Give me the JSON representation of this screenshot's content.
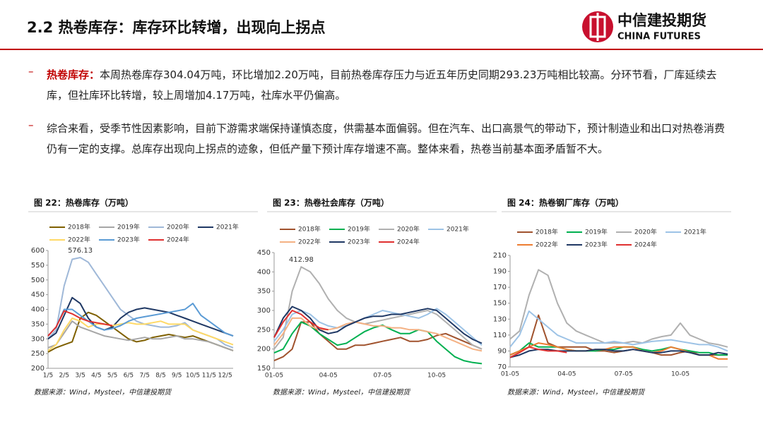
{
  "header": {
    "title": "2.2 热卷库存：库存环比转增，出现向上拐点",
    "logo_cn": "中信建投期货",
    "logo_en": "CHINA FUTURES"
  },
  "bullets": [
    {
      "label": "热卷库存：",
      "text": "本周热卷库存304.04万吨，环比增加2.20万吨，目前热卷库存压力与近五年历史同期293.23万吨相比较高。分环节看，厂库延续去库，但社库环比转增，较上周增加4.17万吨，社库水平仍偏高。"
    },
    {
      "text": "综合来看，受季节性因素影响，目前下游需求端保持谨慎态度，供需基本面偏弱。但在汽车、出口高景气的带动下，预计制造业和出口对热卷消费仍有一定的支撑。总库存出现向上拐点的迹象，但低产量下预计库存增速不高。整体来看，热卷当前基本面矛盾暂不大。"
    }
  ],
  "chart_data": [
    {
      "type": "line",
      "title": "图 22：热卷库存（万吨）",
      "source": "数据来源：Wind，Mysteel，中信建投期货",
      "max_label": true,
      "categories": [
        "1/5",
        null,
        "2/5",
        null,
        "3/5",
        null,
        "4/5",
        null,
        "5/5",
        null,
        "6/5",
        null,
        "7/5",
        null,
        "8/5",
        null,
        "9/5",
        null,
        "10/5",
        null,
        "11/5",
        null,
        "12/5",
        null
      ],
      "ylim": [
        200,
        600
      ],
      "yticks": [
        200,
        250,
        300,
        350,
        400,
        450,
        500,
        550,
        600
      ],
      "series": [
        {
          "name": "2018年",
          "color": "#7f6000",
          "values": [
            255,
            270,
            280,
            290,
            370,
            390,
            380,
            360,
            340,
            320,
            300,
            290,
            295,
            305,
            310,
            315,
            310,
            305,
            310,
            300,
            290,
            280,
            270,
            260
          ]
        },
        {
          "name": "2019年",
          "color": "#a6a6a6",
          "values": [
            270,
            280,
            320,
            360,
            340,
            330,
            320,
            310,
            305,
            300,
            295,
            300,
            305,
            300,
            300,
            305,
            310,
            300,
            300,
            295,
            290,
            280,
            270,
            260
          ]
        },
        {
          "name": "2020年",
          "color": "#9fb8d8",
          "values": [
            300,
            330,
            480,
            570,
            576.13,
            560,
            520,
            480,
            440,
            400,
            380,
            360,
            350,
            345,
            340,
            340,
            345,
            355,
            330,
            320,
            310,
            300,
            280,
            270
          ]
        },
        {
          "name": "2021年",
          "color": "#1f3864",
          "values": [
            300,
            320,
            380,
            440,
            420,
            370,
            340,
            330,
            340,
            370,
            390,
            400,
            405,
            400,
            395,
            390,
            380,
            370,
            360,
            350,
            340,
            330,
            320,
            310
          ]
        },
        {
          "name": "2022年",
          "color": "#ffd966",
          "values": [
            260,
            280,
            330,
            370,
            360,
            340,
            350,
            350,
            345,
            350,
            355,
            350,
            350,
            355,
            360,
            350,
            350,
            350,
            330,
            320,
            310,
            300,
            290,
            280
          ]
        },
        {
          "name": "2023年",
          "color": "#5b9bd5",
          "values": [
            310,
            340,
            400,
            400,
            380,
            360,
            340,
            330,
            335,
            345,
            360,
            370,
            375,
            380,
            385,
            390,
            395,
            400,
            420,
            380,
            360,
            340,
            320,
            310
          ]
        },
        {
          "name": "2024年",
          "color": "#e03030",
          "values": [
            310,
            340,
            395,
            385,
            370,
            360,
            355,
            350,
            345,
            null,
            null,
            null,
            null,
            null,
            null,
            null,
            null,
            null,
            null,
            null,
            null,
            null,
            null,
            null
          ]
        }
      ]
    },
    {
      "type": "line",
      "title": "图 23：热卷社会库存（万吨）",
      "source": "数据来源：Wind，Mysteel，中信建投期货",
      "max_label": true,
      "categories": [
        "01-05",
        null,
        null,
        null,
        null,
        null,
        "04-05",
        null,
        null,
        null,
        null,
        null,
        "07-05",
        null,
        null,
        null,
        null,
        null,
        "10-05",
        null,
        null,
        null,
        null,
        null
      ],
      "ylim": [
        150,
        450
      ],
      "yticks": [
        150,
        200,
        250,
        300,
        350,
        400,
        450
      ],
      "series": [
        {
          "name": "2018年",
          "color": "#a0522d",
          "values": [
            170,
            180,
            200,
            270,
            270,
            240,
            220,
            200,
            200,
            210,
            210,
            215,
            220,
            225,
            230,
            220,
            220,
            225,
            235,
            240,
            230,
            220,
            210,
            200
          ]
        },
        {
          "name": "2019年",
          "color": "#00b050",
          "values": [
            190,
            200,
            240,
            270,
            260,
            240,
            225,
            210,
            215,
            230,
            245,
            255,
            262,
            250,
            240,
            240,
            250,
            245,
            220,
            200,
            180,
            170,
            165,
            162
          ]
        },
        {
          "name": "2020年",
          "color": "#b0b0b0",
          "values": [
            200,
            230,
            350,
            412.98,
            400,
            370,
            330,
            300,
            280,
            270,
            265,
            270,
            275,
            280,
            285,
            290,
            295,
            300,
            290,
            270,
            250,
            230,
            210,
            200
          ]
        },
        {
          "name": "2021年",
          "color": "#9dc3e6",
          "values": [
            220,
            250,
            290,
            300,
            290,
            270,
            260,
            255,
            260,
            270,
            280,
            290,
            300,
            295,
            290,
            285,
            280,
            290,
            305,
            290,
            270,
            250,
            230,
            210
          ]
        },
        {
          "name": "2022年",
          "color": "#f4b183",
          "values": [
            210,
            240,
            280,
            280,
            260,
            250,
            250,
            255,
            265,
            270,
            265,
            260,
            260,
            255,
            255,
            250,
            250,
            245,
            240,
            230,
            220,
            210,
            200,
            195
          ]
        },
        {
          "name": "2023年",
          "color": "#1f3864",
          "values": [
            230,
            280,
            310,
            300,
            280,
            250,
            240,
            245,
            260,
            270,
            280,
            285,
            285,
            290,
            290,
            295,
            300,
            305,
            300,
            280,
            260,
            240,
            225,
            215
          ]
        },
        {
          "name": "2024年",
          "color": "#e03030",
          "values": [
            230,
            270,
            300,
            290,
            270,
            255,
            250,
            null,
            null,
            null,
            null,
            null,
            null,
            null,
            null,
            null,
            null,
            null,
            null,
            null,
            null,
            null,
            null,
            null
          ]
        }
      ]
    },
    {
      "type": "line",
      "title": "图 24：热卷钢厂库存（万吨）",
      "source": "数据来源：Wind，Mysteel，中信建投期货",
      "max_label": false,
      "categories": [
        "01-05",
        null,
        null,
        null,
        null,
        null,
        "04-05",
        null,
        null,
        null,
        null,
        null,
        "07-05",
        null,
        null,
        null,
        null,
        null,
        "10-05",
        null,
        null,
        null,
        null,
        null
      ],
      "ylim": [
        70,
        210
      ],
      "yticks": [
        70,
        90,
        110,
        130,
        150,
        170,
        190,
        210
      ],
      "series": [
        {
          "name": "2018年",
          "color": "#a0522d",
          "values": [
            85,
            90,
            95,
            135,
            100,
            95,
            95,
            95,
            95,
            90,
            90,
            88,
            90,
            92,
            90,
            88,
            85,
            85,
            88,
            90,
            85,
            85,
            85,
            85
          ]
        },
        {
          "name": "2019年",
          "color": "#00b050",
          "values": [
            85,
            90,
            100,
            95,
            95,
            95,
            92,
            90,
            90,
            90,
            92,
            92,
            95,
            95,
            92,
            90,
            92,
            95,
            92,
            90,
            88,
            88,
            85,
            85
          ]
        },
        {
          "name": "2020年",
          "color": "#b0b0b0",
          "values": [
            105,
            115,
            160,
            192,
            185,
            150,
            125,
            115,
            110,
            105,
            100,
            100,
            100,
            102,
            100,
            105,
            108,
            110,
            125,
            110,
            105,
            100,
            98,
            95
          ]
        },
        {
          "name": "2021年",
          "color": "#9dc3e6",
          "values": [
            95,
            110,
            140,
            130,
            120,
            110,
            105,
            100,
            100,
            100,
            100,
            102,
            100,
            98,
            100,
            102,
            103,
            104,
            102,
            100,
            98,
            98,
            95,
            90
          ]
        },
        {
          "name": "2022年",
          "color": "#ed7d31",
          "values": [
            85,
            90,
            95,
            100,
            98,
            95,
            92,
            90,
            90,
            92,
            92,
            95,
            95,
            95,
            90,
            88,
            90,
            95,
            92,
            88,
            85,
            85,
            80,
            80
          ]
        },
        {
          "name": "2023年",
          "color": "#1f3864",
          "values": [
            82,
            85,
            90,
            92,
            92,
            90,
            90,
            90,
            90,
            92,
            92,
            90,
            90,
            92,
            90,
            88,
            88,
            90,
            90,
            88,
            85,
            85,
            88,
            86
          ]
        },
        {
          "name": "2024年",
          "color": "#e03030",
          "values": [
            82,
            88,
            95,
            92,
            90,
            90,
            88,
            null,
            null,
            null,
            null,
            null,
            null,
            null,
            null,
            null,
            null,
            null,
            null,
            null,
            null,
            null,
            null,
            null
          ]
        }
      ]
    }
  ]
}
